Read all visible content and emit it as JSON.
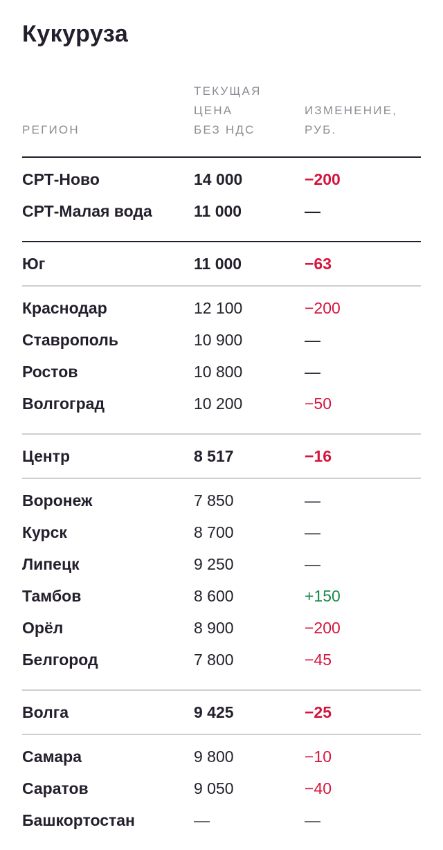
{
  "title": "Кукуруза",
  "columns": {
    "region": "РЕГИОН",
    "price_lines": [
      "ТЕКУЩАЯ",
      "ЦЕНА",
      "БЕЗ НДС"
    ],
    "change_lines": [
      "ИЗМЕНЕНИЕ,",
      "РУБ."
    ]
  },
  "groups": [
    {
      "separator": "dark",
      "rows": [
        {
          "region": "СРТ-Ново",
          "price": "14 000",
          "change": "−200",
          "bold": true,
          "trend": "neg"
        },
        {
          "region": "СРТ-Малая вода",
          "price": "11 000",
          "change": "—",
          "bold": true,
          "trend": "none"
        }
      ]
    },
    {
      "separator": "light",
      "rows": [
        {
          "region": "Юг",
          "price": "11 000",
          "change": "−63",
          "bold": true,
          "trend": "neg"
        }
      ]
    },
    {
      "separator": "light",
      "rows": [
        {
          "region": "Краснодар",
          "price": "12 100",
          "change": "−200",
          "bold": false,
          "trend": "neg"
        },
        {
          "region": "Ставрополь",
          "price": "10 900",
          "change": "—",
          "bold": false,
          "trend": "none"
        },
        {
          "region": "Ростов",
          "price": "10 800",
          "change": "—",
          "bold": false,
          "trend": "none"
        },
        {
          "region": "Волгоград",
          "price": "10 200",
          "change": "−50",
          "bold": false,
          "trend": "neg"
        }
      ]
    },
    {
      "separator": "light",
      "rows": [
        {
          "region": "Центр",
          "price": "8 517",
          "change": "−16",
          "bold": true,
          "trend": "neg"
        }
      ]
    },
    {
      "separator": "light",
      "rows": [
        {
          "region": "Воронеж",
          "price": "7 850",
          "change": "—",
          "bold": false,
          "trend": "none"
        },
        {
          "region": "Курск",
          "price": "8 700",
          "change": "—",
          "bold": false,
          "trend": "none"
        },
        {
          "region": "Липецк",
          "price": "9 250",
          "change": "—",
          "bold": false,
          "trend": "none"
        },
        {
          "region": "Тамбов",
          "price": "8 600",
          "change": "+150",
          "bold": false,
          "trend": "pos"
        },
        {
          "region": "Орёл",
          "price": "8 900",
          "change": "−200",
          "bold": false,
          "trend": "neg"
        },
        {
          "region": "Белгород",
          "price": "7 800",
          "change": "−45",
          "bold": false,
          "trend": "neg"
        }
      ]
    },
    {
      "separator": "light",
      "rows": [
        {
          "region": "Волга",
          "price": "9 425",
          "change": "−25",
          "bold": true,
          "trend": "neg"
        }
      ]
    },
    {
      "separator": "none",
      "rows": [
        {
          "region": "Самара",
          "price": "9 800",
          "change": "−10",
          "bold": false,
          "trend": "neg"
        },
        {
          "region": "Саратов",
          "price": "9 050",
          "change": "−40",
          "bold": false,
          "trend": "neg"
        },
        {
          "region": "Башкортостан",
          "price": "—",
          "change": "—",
          "bold": false,
          "trend": "none"
        }
      ]
    }
  ],
  "colors": {
    "text": "#241f2c",
    "header": "#8c8c94",
    "negative": "#d5143c",
    "positive": "#178a4a",
    "rule_dark": "#231f2b",
    "rule_light": "#cfcfd3"
  }
}
